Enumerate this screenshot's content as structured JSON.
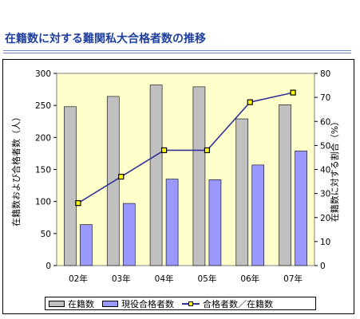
{
  "page": {
    "title": "在籍数に対する難関私大合格者数の推移"
  },
  "chart_data": {
    "type": "bar",
    "categories": [
      "02年",
      "03年",
      "04年",
      "05年",
      "06年",
      "07年"
    ],
    "series": [
      {
        "name": "在籍数",
        "kind": "bar",
        "axis": "left",
        "color": "#c0c0c0",
        "values": [
          248,
          264,
          282,
          279,
          229,
          251
        ]
      },
      {
        "name": "現役合格者数",
        "kind": "bar",
        "axis": "left",
        "color": "#9999ff",
        "values": [
          64,
          97,
          135,
          134,
          157,
          179
        ]
      },
      {
        "name": "合格者数／在籍数",
        "kind": "line",
        "axis": "right",
        "color": "#333399",
        "marker_color": "#ffff00",
        "values": [
          26,
          37,
          48,
          48,
          68,
          72
        ]
      }
    ],
    "ylabel": "在籍数および合格者数（人）",
    "y2label": "在籍数に対する割合（%）",
    "ylim": [
      0,
      300
    ],
    "yticks": [
      0,
      50,
      100,
      150,
      200,
      250,
      300
    ],
    "y2lim": [
      0,
      80
    ],
    "y2ticks": [
      0,
      10,
      20,
      30,
      40,
      50,
      60,
      70,
      80
    ],
    "plot_background": "#ffffcc",
    "grid": false,
    "legend_position": "bottom"
  }
}
